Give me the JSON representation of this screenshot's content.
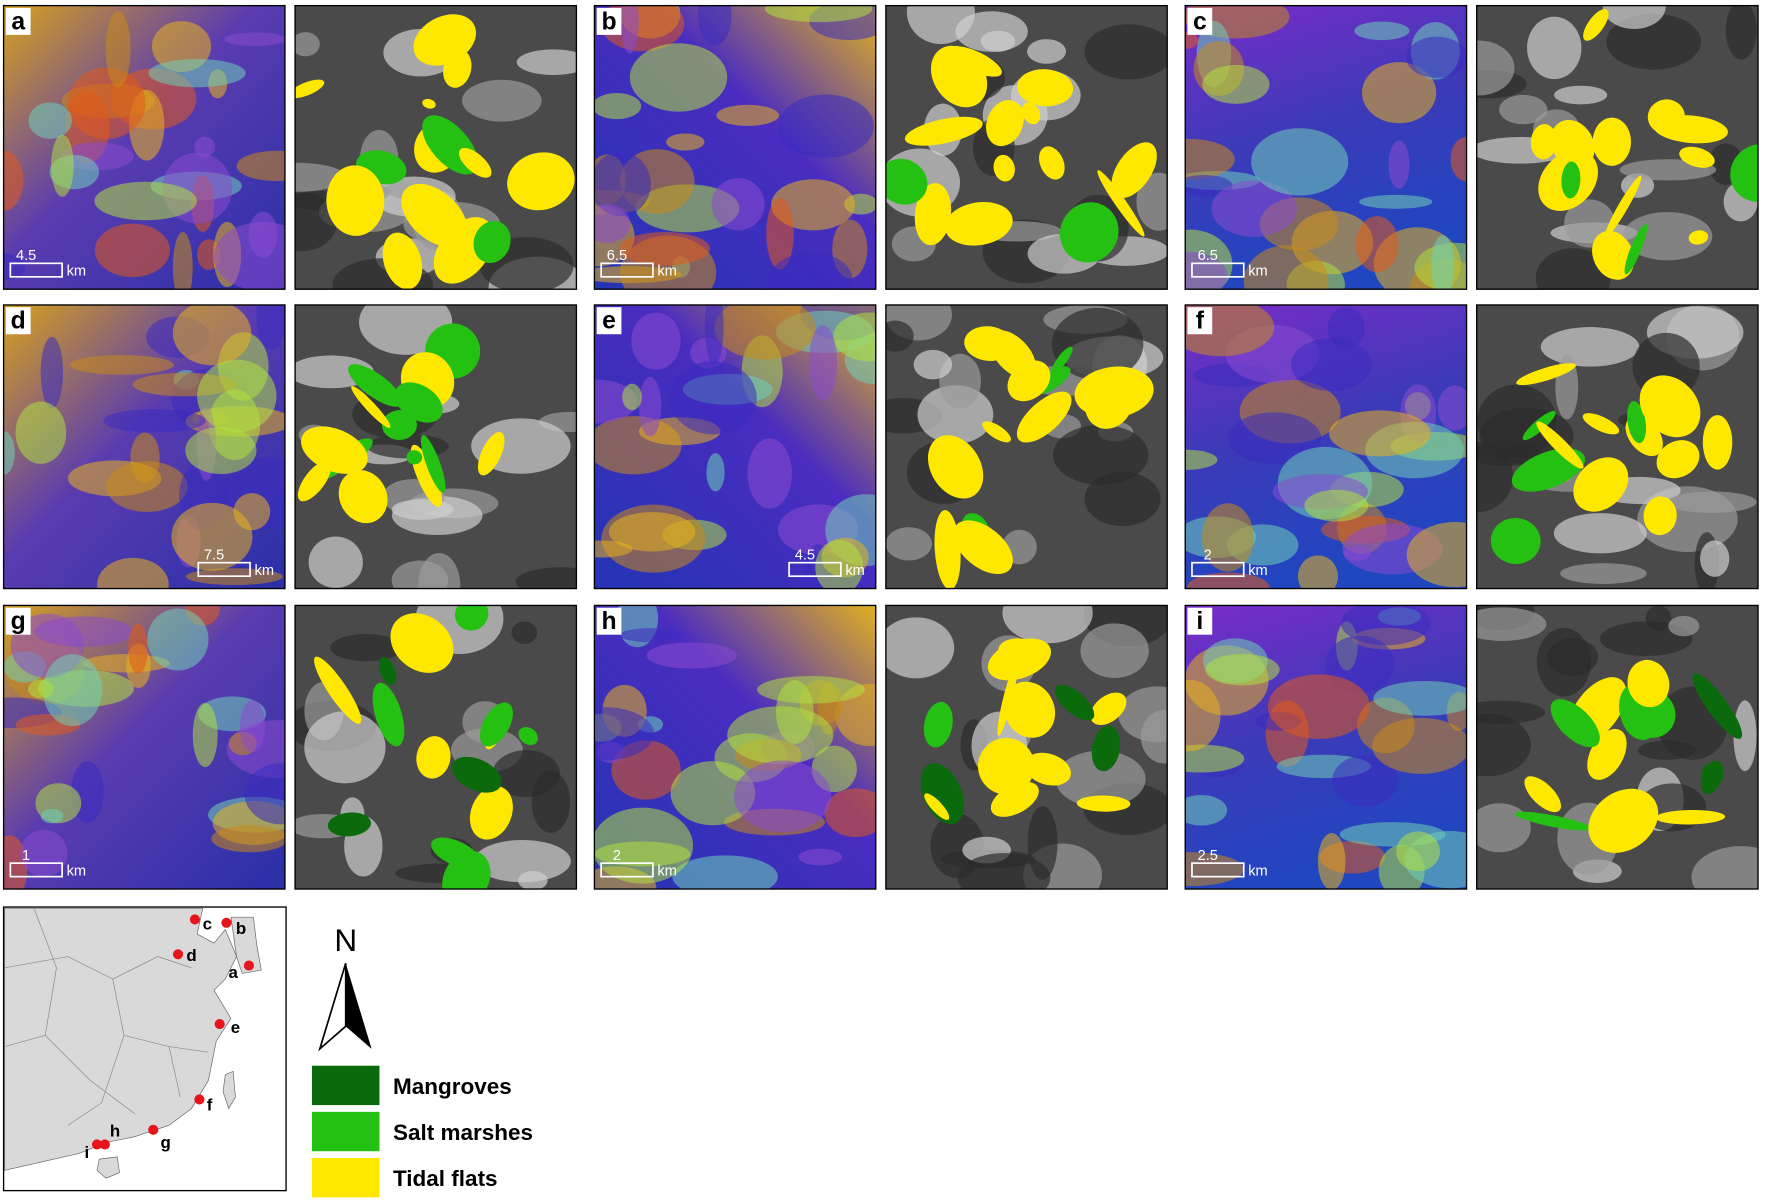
{
  "panels": [
    {
      "label": "a",
      "scale": "4.5",
      "unit": "km"
    },
    {
      "label": "b",
      "scale": "6.5",
      "unit": "km"
    },
    {
      "label": "c",
      "scale": "6.5",
      "unit": "km"
    },
    {
      "label": "d",
      "scale": "7.5",
      "unit": "km"
    },
    {
      "label": "e",
      "scale": "4.5",
      "unit": "km"
    },
    {
      "label": "f",
      "scale": "2",
      "unit": "km"
    },
    {
      "label": "g",
      "scale": "1",
      "unit": "km"
    },
    {
      "label": "h",
      "scale": "2",
      "unit": "km"
    },
    {
      "label": "i",
      "scale": "2.5",
      "unit": "km"
    }
  ],
  "map": {
    "sites": [
      "c",
      "b",
      "d",
      "a",
      "e",
      "f",
      "h",
      "i",
      "g"
    ],
    "site_color": "#e8141c"
  },
  "north": "N",
  "legend": [
    {
      "label": "Mangroves",
      "color": "#0b6a0b"
    },
    {
      "label": "Salt marshes",
      "color": "#24c112"
    },
    {
      "label": "Tidal flats",
      "color": "#ffe800"
    }
  ]
}
